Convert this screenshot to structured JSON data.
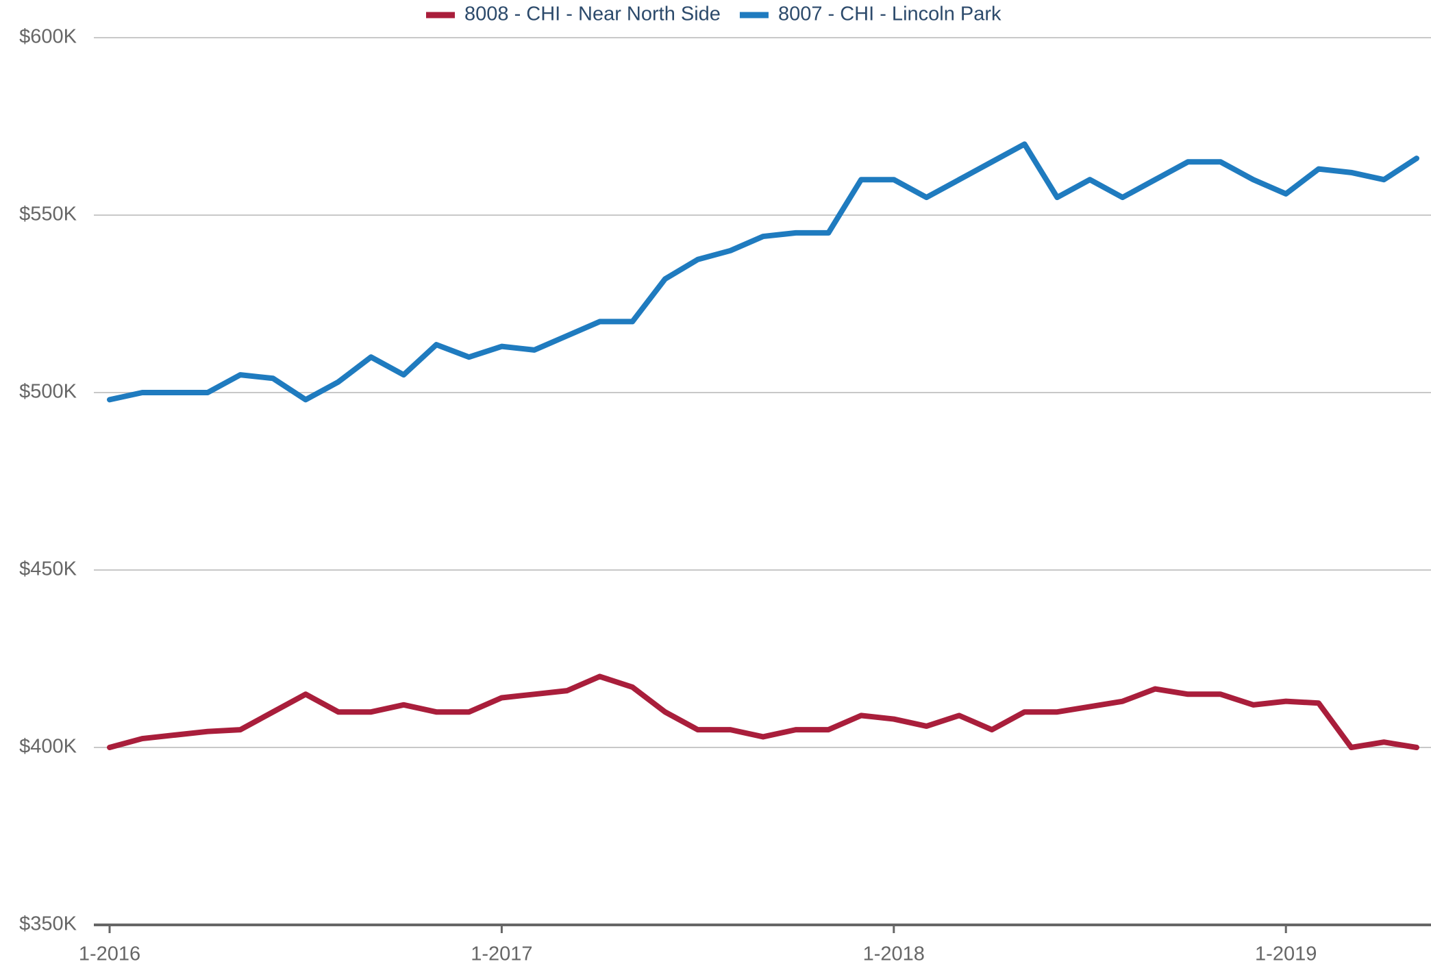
{
  "chart_data": {
    "type": "line",
    "categories": [
      "1-2016",
      null,
      null,
      null,
      null,
      null,
      null,
      null,
      null,
      null,
      null,
      null,
      "1-2017",
      null,
      null,
      null,
      null,
      null,
      null,
      null,
      null,
      null,
      null,
      null,
      "1-2018",
      null,
      null,
      null,
      null,
      null,
      null,
      null,
      null,
      null,
      null,
      null,
      "1-2019",
      null,
      null,
      null,
      null
    ],
    "series": [
      {
        "name": "8008 - CHI - Near North Side",
        "color": "#a91e3b",
        "values": [
          400000,
          402500,
          403500,
          404500,
          405000,
          410000,
          415000,
          410000,
          410000,
          412000,
          410000,
          410000,
          414000,
          415000,
          416000,
          420000,
          417000,
          410000,
          405000,
          405000,
          403000,
          405000,
          405000,
          409000,
          408000,
          406000,
          409000,
          405000,
          410000,
          410000,
          411500,
          413000,
          416500,
          415000,
          415000,
          412000,
          413000,
          412500,
          400000,
          401500,
          400000
        ]
      },
      {
        "name": "8007 - CHI - Lincoln Park",
        "color": "#1f7bbf",
        "values": [
          498000,
          500000,
          500000,
          500000,
          505000,
          504000,
          498000,
          503000,
          510000,
          505000,
          513500,
          510000,
          513000,
          512000,
          516000,
          520000,
          520000,
          532000,
          537500,
          540000,
          544000,
          545000,
          545000,
          560000,
          560000,
          555000,
          560000,
          565000,
          570000,
          555000,
          560000,
          555000,
          560000,
          565000,
          565000,
          560000,
          556000,
          563000,
          562000,
          560000,
          566000
        ]
      }
    ],
    "ylim": [
      350000,
      600000
    ],
    "yticks": [
      {
        "value": 350000,
        "label": "$350K"
      },
      {
        "value": 400000,
        "label": "$400K"
      },
      {
        "value": 450000,
        "label": "$450K"
      },
      {
        "value": 500000,
        "label": "$500K"
      },
      {
        "value": 550000,
        "label": "$550K"
      },
      {
        "value": 600000,
        "label": "$600K"
      }
    ],
    "grid": true,
    "legend": "top"
  }
}
